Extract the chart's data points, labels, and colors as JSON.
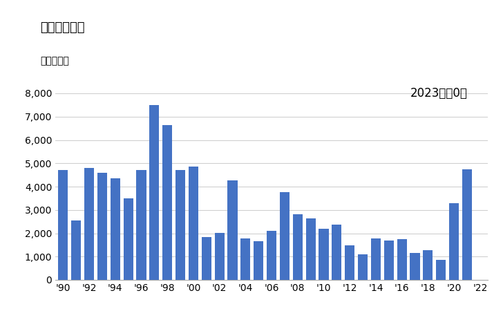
{
  "title": "輸出額の推移",
  "unit_label": "単位：万円",
  "annotation": "2023年：0円",
  "years": [
    1990,
    1991,
    1992,
    1993,
    1994,
    1995,
    1996,
    1997,
    1998,
    1999,
    2000,
    2001,
    2002,
    2003,
    2004,
    2005,
    2006,
    2007,
    2008,
    2009,
    2010,
    2011,
    2012,
    2013,
    2014,
    2015,
    2016,
    2017,
    2018,
    2019,
    2020,
    2021,
    2022
  ],
  "values": [
    4700,
    2550,
    4800,
    4600,
    4350,
    3500,
    4700,
    7500,
    6650,
    4700,
    4850,
    1850,
    2020,
    4280,
    1780,
    1650,
    2100,
    3750,
    2820,
    2650,
    2200,
    2380,
    1480,
    1100,
    1780,
    1700,
    1750,
    1150,
    1280,
    870,
    3300,
    4750,
    0
  ],
  "bar_color": "#4472c4",
  "ylim": [
    0,
    8000
  ],
  "yticks": [
    0,
    1000,
    2000,
    3000,
    4000,
    5000,
    6000,
    7000,
    8000
  ],
  "xtick_labels": [
    "'90",
    "'92",
    "'94",
    "'96",
    "'98",
    "'00",
    "'02",
    "'04",
    "'06",
    "'08",
    "'10",
    "'12",
    "'14",
    "'16",
    "'18",
    "'20",
    "'22"
  ],
  "xtick_years": [
    1990,
    1992,
    1994,
    1996,
    1998,
    2000,
    2002,
    2004,
    2006,
    2008,
    2010,
    2012,
    2014,
    2016,
    2018,
    2020,
    2022
  ],
  "background_color": "#ffffff",
  "grid_color": "#d0d0d0",
  "title_fontsize": 13,
  "annotation_fontsize": 12,
  "unit_fontsize": 10,
  "tick_fontsize": 10
}
